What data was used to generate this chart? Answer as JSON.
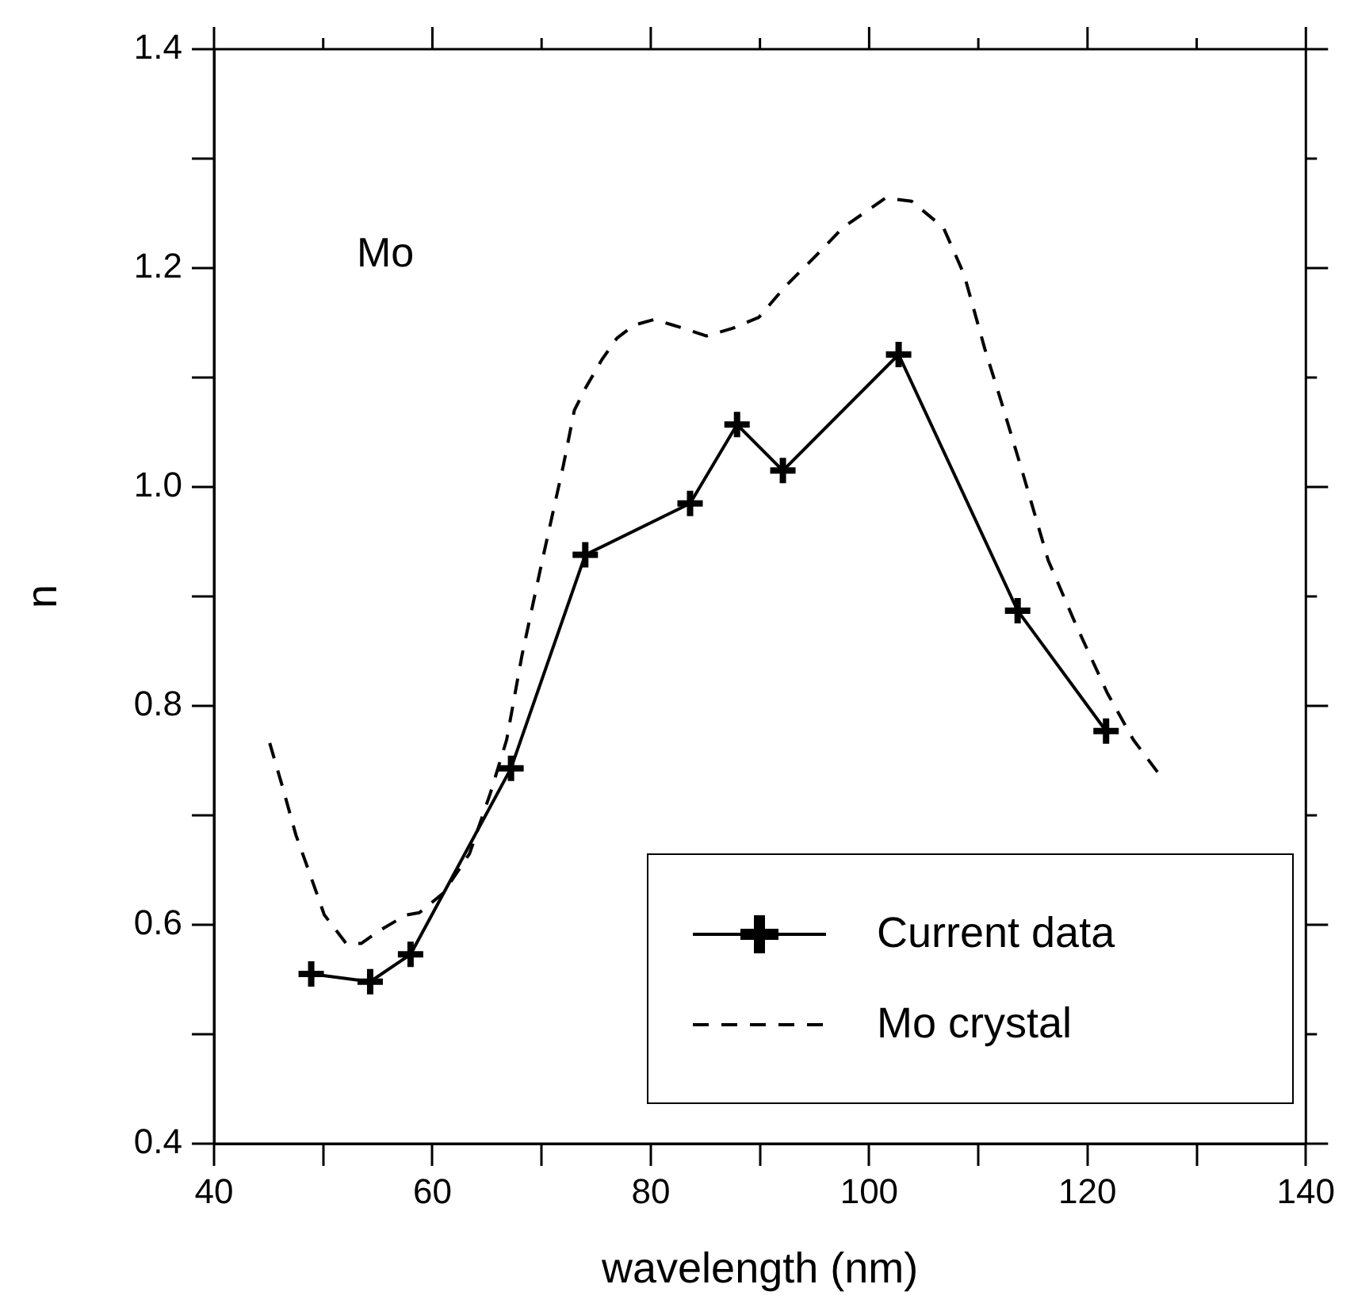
{
  "chart_data": {
    "type": "line",
    "xlabel": "wavelength (nm)",
    "ylabel": "n",
    "annotations": [
      "Mo"
    ],
    "xlim": [
      40,
      140
    ],
    "xticks": [
      40,
      {
        "value": 50,
        "label": null
      },
      60,
      {
        "value": 70,
        "label": null
      },
      80,
      {
        "value": 90,
        "label": null
      },
      100,
      {
        "value": 110,
        "label": null
      },
      120,
      {
        "value": 130,
        "label": null
      },
      140
    ],
    "ylim": [
      0.4,
      1.4
    ],
    "yticks": [
      0.4,
      {
        "value": 0.5,
        "label": null
      },
      0.6,
      {
        "value": 0.7,
        "label": null
      },
      0.8,
      {
        "value": 0.9,
        "label": null
      },
      {
        "value": 1.0,
        "label": "1.0"
      },
      {
        "value": 1.1,
        "label": null
      },
      1.2,
      {
        "value": 1.3,
        "label": null
      },
      1.4
    ],
    "grid": false,
    "legend": "bottom right",
    "series": [
      {
        "name": "Current data",
        "color": "#000000",
        "marker": "cross",
        "line_style": "solid",
        "x": [
          48.9,
          54.3,
          58.0,
          67.2,
          74.0,
          83.6,
          87.9,
          92.1,
          102.7,
          113.6,
          121.7
        ],
        "values": [
          0.555,
          0.548,
          0.573,
          0.743,
          0.938,
          0.985,
          1.057,
          1.015,
          1.121,
          0.887,
          0.777
        ]
      },
      {
        "name": "Mo crystal",
        "color": "#000000",
        "marker": "none",
        "line_style": "dashed",
        "x": [
          45.1,
          46.3,
          47.5,
          48.9,
          50.1,
          52.1,
          53.5,
          55.2,
          57.6,
          58.8,
          61.0,
          63.4,
          65.3,
          66.8,
          68.2,
          70.0,
          72.0,
          73.0,
          74.0,
          75.5,
          76.9,
          78.5,
          80.3,
          82.0,
          83.6,
          85.1,
          87.5,
          89.9,
          92.3,
          95.2,
          97.6,
          101.5,
          103.9,
          106.8,
          108.7,
          110.6,
          112.1,
          114.0,
          116.4,
          118.9,
          121.8,
          124.2,
          126.6
        ],
        "values": [
          0.766,
          0.725,
          0.682,
          0.643,
          0.609,
          0.583,
          0.583,
          0.595,
          0.609,
          0.611,
          0.629,
          0.665,
          0.72,
          0.769,
          0.846,
          0.93,
          1.02,
          1.07,
          1.09,
          1.116,
          1.136,
          1.148,
          1.153,
          1.148,
          1.143,
          1.138,
          1.145,
          1.155,
          1.183,
          1.212,
          1.237,
          1.264,
          1.261,
          1.237,
          1.194,
          1.126,
          1.078,
          1.015,
          0.933,
          0.875,
          0.812,
          0.769,
          0.737
        ]
      }
    ]
  }
}
